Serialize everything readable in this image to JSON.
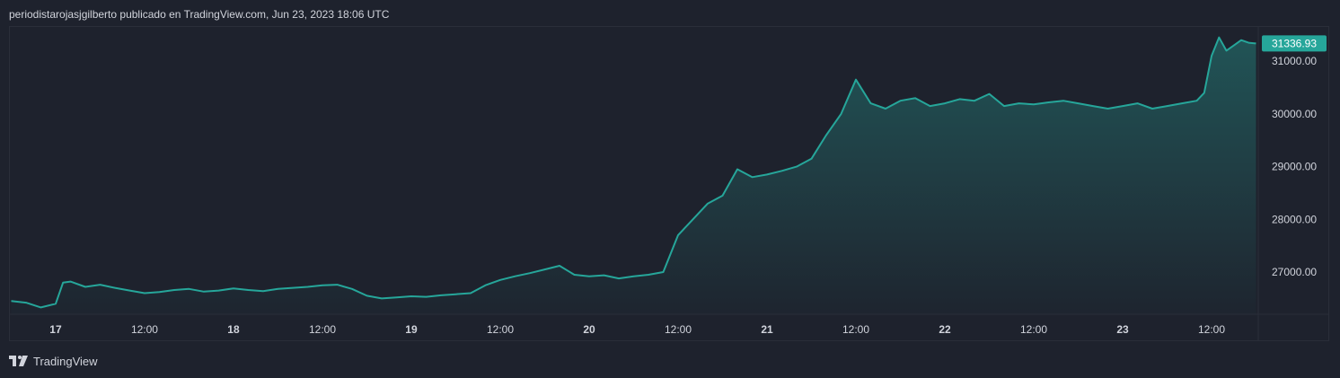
{
  "header": {
    "text": "periodistarojasjgilberto publicado en TradingView.com, Jun 23, 2023 18:06 UTC"
  },
  "footer": {
    "brand": "TradingView",
    "logo_icon": "tradingview-logo-icon"
  },
  "colors": {
    "background": "#1e222d",
    "line": "#26a69a",
    "price_badge": "#26a69a",
    "axis_text": "#d1d4dc"
  },
  "chart_data": {
    "type": "area",
    "symbol_price_label": "31336.93",
    "y_ticks": [
      "27000.00",
      "28000.00",
      "29000.00",
      "30000.00",
      "31000.00"
    ],
    "ylim": [
      26200,
      31650
    ],
    "x_ticks": [
      "17",
      "12:00",
      "18",
      "12:00",
      "19",
      "12:00",
      "20",
      "12:00",
      "21",
      "12:00",
      "22",
      "12:00",
      "23",
      "12:00"
    ],
    "x_range_hours": [
      -6.3,
      162.3
    ],
    "x_unit": "hours since Jun 17 00:00",
    "grid": false,
    "legend": "none",
    "x": [
      -6,
      -4,
      -2,
      0,
      1,
      2,
      4,
      6,
      8,
      10,
      12,
      14,
      16,
      18,
      20,
      22,
      24,
      26,
      28,
      30,
      32,
      34,
      36,
      38,
      40,
      42,
      44,
      46,
      48,
      50,
      52,
      54,
      56,
      58,
      60,
      62,
      64,
      66,
      68,
      70,
      72,
      74,
      76,
      78,
      80,
      82,
      84,
      86,
      88,
      90,
      92,
      94,
      96,
      98,
      100,
      102,
      104,
      106,
      108,
      110,
      112,
      114,
      116,
      118,
      120,
      122,
      124,
      126,
      128,
      130,
      132,
      134,
      136,
      138,
      140,
      142,
      144,
      146,
      148,
      150,
      152,
      154,
      155,
      156,
      157,
      158,
      159,
      160,
      161,
      162
    ],
    "values": [
      26450,
      26420,
      26330,
      26400,
      26800,
      26820,
      26720,
      26760,
      26700,
      26650,
      26600,
      26620,
      26660,
      26680,
      26630,
      26650,
      26690,
      26660,
      26640,
      26680,
      26700,
      26720,
      26750,
      26760,
      26680,
      26550,
      26500,
      26520,
      26540,
      26530,
      26560,
      26580,
      26600,
      26750,
      26850,
      26920,
      26980,
      27050,
      27120,
      26950,
      26920,
      26940,
      26880,
      26920,
      26950,
      27000,
      27700,
      28000,
      28300,
      28450,
      28950,
      28800,
      28850,
      28920,
      29000,
      29150,
      29600,
      30000,
      30650,
      30200,
      30100,
      30250,
      30300,
      30150,
      30200,
      30280,
      30250,
      30380,
      30150,
      30200,
      30180,
      30220,
      30250,
      30200,
      30150,
      30100,
      30150,
      30200,
      30100,
      30150,
      30200,
      30250,
      30400,
      31100,
      31450,
      31200,
      31300,
      31400,
      31350,
      31337
    ]
  }
}
